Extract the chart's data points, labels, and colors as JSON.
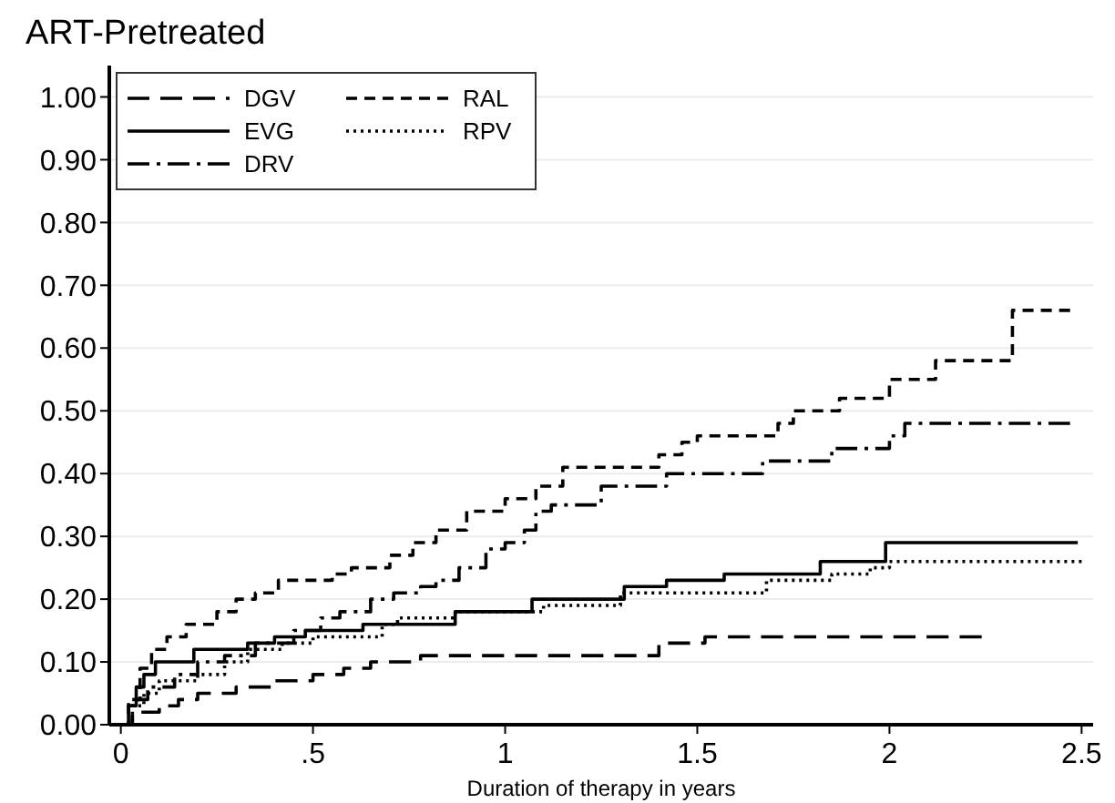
{
  "chart_data": {
    "type": "step",
    "title": "ART-Pretreated",
    "xlabel": "Duration of therapy in years",
    "xlim": [
      -0.03,
      2.53
    ],
    "ylim": [
      0,
      1.05
    ],
    "xticks": [
      0,
      {
        "value": 0.5,
        "label": ".5"
      },
      1,
      1.5,
      2,
      2.5
    ],
    "yticks": [
      {
        "value": 0,
        "label": "0.00"
      },
      {
        "value": 0.1,
        "label": "0.10"
      },
      {
        "value": 0.2,
        "label": "0.20"
      },
      {
        "value": 0.3,
        "label": "0.30"
      },
      {
        "value": 0.4,
        "label": "0.40"
      },
      {
        "value": 0.5,
        "label": "0.50"
      },
      {
        "value": 0.6,
        "label": "0.60"
      },
      {
        "value": 0.7,
        "label": "0.70"
      },
      {
        "value": 0.8,
        "label": "0.80"
      },
      {
        "value": 0.9,
        "label": "0.90"
      },
      {
        "value": 1,
        "label": "1.00"
      }
    ],
    "grid": "y",
    "legend": "top left",
    "marker": "none",
    "series": [
      {
        "name": "DGV",
        "color": "#000000",
        "line_style": "longdash",
        "x": [
          0,
          0.03,
          0.1,
          0.15,
          0.2,
          0.3,
          0.4,
          0.5,
          0.58,
          0.65,
          0.78,
          1.4,
          1.52,
          2.24
        ],
        "values": [
          0,
          0.02,
          0.03,
          0.04,
          0.05,
          0.06,
          0.07,
          0.08,
          0.09,
          0.1,
          0.11,
          0.13,
          0.14,
          0.14
        ]
      },
      {
        "name": "EVG",
        "color": "#000000",
        "line_style": "solid",
        "x": [
          0,
          0.02,
          0.04,
          0.06,
          0.09,
          0.19,
          0.33,
          0.4,
          0.48,
          0.63,
          0.87,
          1.07,
          1.31,
          1.42,
          1.57,
          1.82,
          1.99,
          2.49
        ],
        "values": [
          0,
          0.03,
          0.06,
          0.08,
          0.1,
          0.12,
          0.13,
          0.14,
          0.15,
          0.16,
          0.18,
          0.2,
          0.22,
          0.23,
          0.24,
          0.26,
          0.29,
          0.29
        ]
      },
      {
        "name": "DRV",
        "color": "#000000",
        "line_style": "dashdot",
        "x": [
          0,
          0.03,
          0.07,
          0.14,
          0.2,
          0.27,
          0.35,
          0.45,
          0.52,
          0.57,
          0.65,
          0.71,
          0.78,
          0.82,
          0.88,
          0.95,
          1.0,
          1.05,
          1.08,
          1.12,
          1.25,
          1.42,
          1.67,
          1.85,
          2.0,
          2.04,
          2.47
        ],
        "values": [
          0,
          0.04,
          0.06,
          0.08,
          0.1,
          0.11,
          0.13,
          0.15,
          0.17,
          0.18,
          0.2,
          0.21,
          0.22,
          0.23,
          0.25,
          0.28,
          0.29,
          0.31,
          0.34,
          0.35,
          0.38,
          0.4,
          0.42,
          0.44,
          0.46,
          0.48,
          0.48
        ]
      },
      {
        "name": "RAL",
        "color": "#000000",
        "line_style": "dashed",
        "x": [
          0,
          0.02,
          0.05,
          0.08,
          0.12,
          0.17,
          0.25,
          0.3,
          0.35,
          0.41,
          0.55,
          0.6,
          0.7,
          0.76,
          0.82,
          0.9,
          1.0,
          1.08,
          1.15,
          1.4,
          1.46,
          1.5,
          1.71,
          1.75,
          1.87,
          2.0,
          2.12,
          2.32,
          2.47
        ],
        "values": [
          0,
          0.04,
          0.09,
          0.12,
          0.14,
          0.16,
          0.18,
          0.2,
          0.21,
          0.23,
          0.24,
          0.25,
          0.27,
          0.29,
          0.31,
          0.34,
          0.36,
          0.38,
          0.41,
          0.43,
          0.45,
          0.46,
          0.48,
          0.5,
          0.52,
          0.55,
          0.58,
          0.66,
          0.66
        ]
      },
      {
        "name": "RPV",
        "color": "#000000",
        "line_style": "dotted",
        "x": [
          0,
          0.03,
          0.06,
          0.1,
          0.2,
          0.27,
          0.33,
          0.42,
          0.5,
          0.68,
          0.72,
          0.87,
          1.1,
          1.3,
          1.68,
          1.85,
          1.95,
          2.0,
          2.5
        ],
        "values": [
          0,
          0.03,
          0.05,
          0.07,
          0.08,
          0.1,
          0.12,
          0.13,
          0.14,
          0.16,
          0.17,
          0.18,
          0.19,
          0.21,
          0.23,
          0.24,
          0.25,
          0.26,
          0.26
        ]
      }
    ]
  }
}
